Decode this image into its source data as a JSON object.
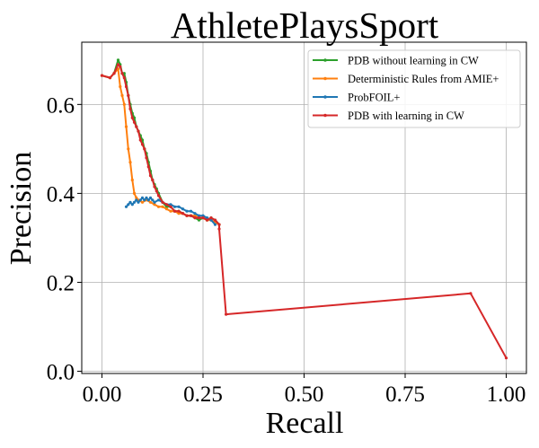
{
  "chart_data": {
    "type": "line",
    "title": "AthletePlaysSport",
    "xlabel": "Recall",
    "ylabel": "Precision",
    "xlim": [
      -0.05,
      1.05
    ],
    "ylim": [
      -0.005,
      0.74
    ],
    "xticks": [
      0.0,
      0.25,
      0.5,
      0.75,
      1.0
    ],
    "xtick_labels": [
      "0.00",
      "0.25",
      "0.50",
      "0.75",
      "1.00"
    ],
    "yticks": [
      0.0,
      0.2,
      0.4,
      0.6
    ],
    "ytick_labels": [
      "0.0",
      "0.2",
      "0.4",
      "0.6"
    ],
    "grid": true,
    "legend_position": "top-right",
    "series": [
      {
        "name": "PDB without learning in CW",
        "color": "#2ca02c",
        "x": [
          0.0,
          0.02,
          0.03,
          0.04,
          0.045,
          0.05,
          0.055,
          0.06,
          0.065,
          0.07,
          0.075,
          0.08,
          0.085,
          0.09,
          0.095,
          0.1,
          0.105,
          0.11,
          0.115,
          0.12,
          0.125,
          0.13,
          0.135,
          0.14,
          0.15,
          0.16,
          0.17,
          0.18,
          0.19,
          0.2,
          0.21,
          0.22,
          0.23,
          0.24,
          0.25,
          0.26,
          0.27,
          0.28,
          0.29
        ],
        "y": [
          0.665,
          0.66,
          0.67,
          0.7,
          0.69,
          0.67,
          0.67,
          0.65,
          0.62,
          0.6,
          0.58,
          0.57,
          0.55,
          0.54,
          0.53,
          0.52,
          0.5,
          0.49,
          0.47,
          0.45,
          0.43,
          0.42,
          0.41,
          0.4,
          0.38,
          0.37,
          0.37,
          0.36,
          0.36,
          0.355,
          0.35,
          0.35,
          0.345,
          0.34,
          0.345,
          0.34,
          0.345,
          0.34,
          0.33
        ]
      },
      {
        "name": "Deterministic Rules from AMIE+",
        "color": "#ff7f0e",
        "x": [
          0.0,
          0.02,
          0.03,
          0.04,
          0.045,
          0.05,
          0.055,
          0.06,
          0.065,
          0.07,
          0.075,
          0.08,
          0.085,
          0.09,
          0.1,
          0.11,
          0.12,
          0.13,
          0.14,
          0.15,
          0.16,
          0.17,
          0.18,
          0.19,
          0.2,
          0.21,
          0.22,
          0.23,
          0.24,
          0.25,
          0.26,
          0.27,
          0.28,
          0.29
        ],
        "y": [
          0.665,
          0.66,
          0.67,
          0.68,
          0.64,
          0.62,
          0.6,
          0.55,
          0.5,
          0.47,
          0.43,
          0.4,
          0.39,
          0.385,
          0.38,
          0.385,
          0.38,
          0.375,
          0.37,
          0.37,
          0.365,
          0.36,
          0.36,
          0.355,
          0.355,
          0.35,
          0.35,
          0.35,
          0.345,
          0.345,
          0.34,
          0.34,
          0.335,
          0.33
        ]
      },
      {
        "name": "ProbFOIL+",
        "color": "#1f77b4",
        "x": [
          0.06,
          0.065,
          0.07,
          0.075,
          0.08,
          0.085,
          0.09,
          0.095,
          0.1,
          0.105,
          0.11,
          0.115,
          0.12,
          0.125,
          0.13,
          0.14,
          0.15,
          0.16,
          0.17,
          0.18,
          0.19,
          0.2,
          0.21,
          0.22,
          0.23,
          0.24,
          0.25,
          0.26,
          0.27,
          0.28
        ],
        "y": [
          0.37,
          0.375,
          0.38,
          0.375,
          0.38,
          0.385,
          0.38,
          0.385,
          0.39,
          0.385,
          0.39,
          0.385,
          0.39,
          0.385,
          0.38,
          0.385,
          0.38,
          0.375,
          0.375,
          0.37,
          0.37,
          0.365,
          0.36,
          0.36,
          0.355,
          0.35,
          0.35,
          0.345,
          0.34,
          0.33
        ]
      },
      {
        "name": "PDB with learning in CW",
        "color": "#d62728",
        "x": [
          0.0,
          0.02,
          0.03,
          0.04,
          0.045,
          0.05,
          0.055,
          0.06,
          0.065,
          0.07,
          0.075,
          0.08,
          0.085,
          0.09,
          0.095,
          0.1,
          0.105,
          0.11,
          0.115,
          0.12,
          0.125,
          0.13,
          0.135,
          0.14,
          0.15,
          0.16,
          0.17,
          0.18,
          0.19,
          0.2,
          0.21,
          0.22,
          0.23,
          0.24,
          0.25,
          0.26,
          0.27,
          0.28,
          0.29,
          0.29,
          0.307,
          0.912,
          1.0
        ],
        "y": [
          0.665,
          0.66,
          0.67,
          0.69,
          0.685,
          0.67,
          0.66,
          0.64,
          0.62,
          0.59,
          0.57,
          0.56,
          0.55,
          0.54,
          0.52,
          0.51,
          0.5,
          0.48,
          0.46,
          0.44,
          0.43,
          0.415,
          0.405,
          0.395,
          0.38,
          0.375,
          0.37,
          0.36,
          0.36,
          0.355,
          0.35,
          0.35,
          0.345,
          0.345,
          0.345,
          0.34,
          0.345,
          0.34,
          0.33,
          0.32,
          0.128,
          0.175,
          0.03
        ]
      }
    ]
  }
}
